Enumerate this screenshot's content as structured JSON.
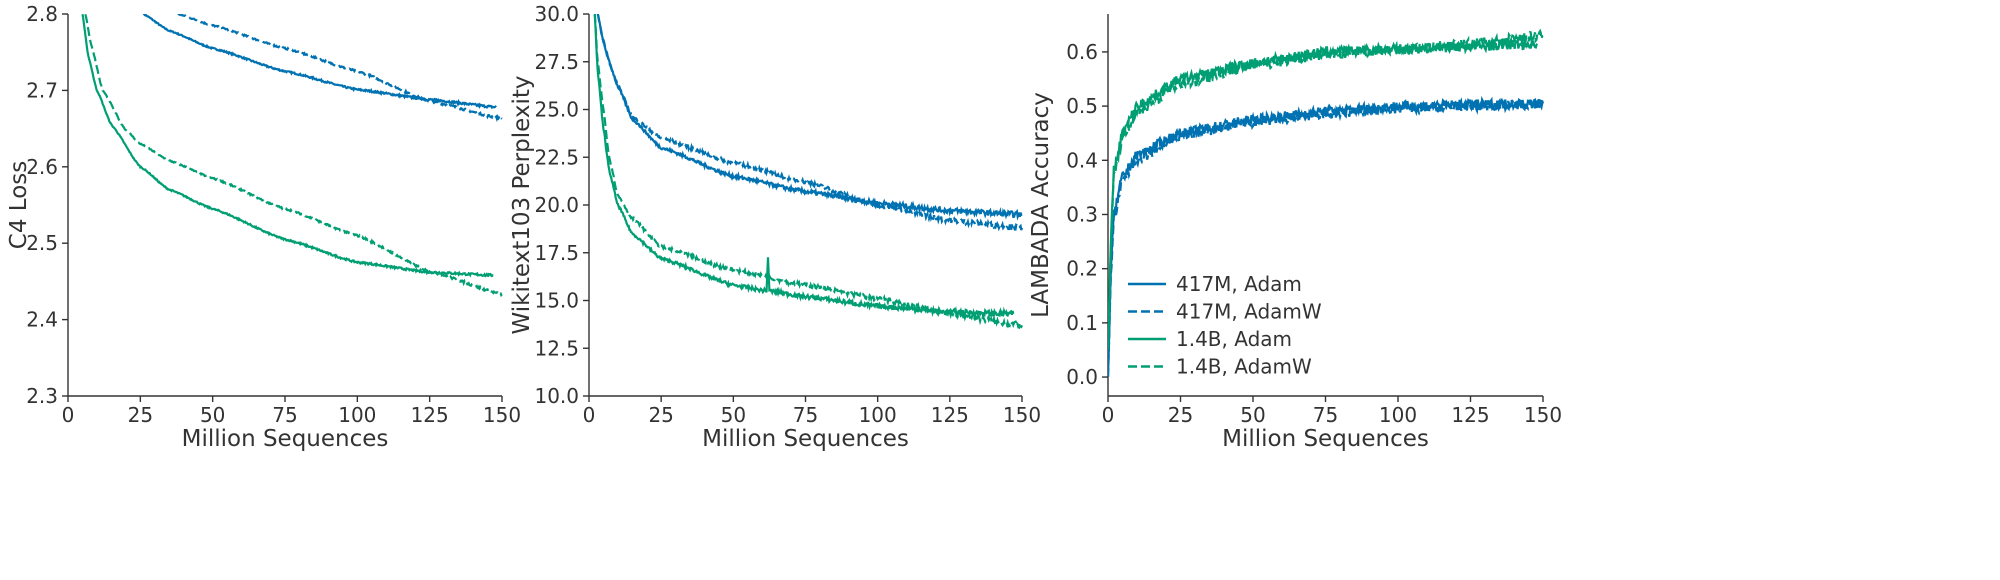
{
  "chart_data": [
    {
      "type": "line",
      "xlabel": "Million Sequences",
      "ylabel": "C4 Loss",
      "xlim": [
        0,
        150
      ],
      "ylim": [
        2.3,
        2.8
      ],
      "xticks": [
        "0",
        "25",
        "50",
        "75",
        "100",
        "125",
        "150"
      ],
      "yticks": [
        "2.3",
        "2.4",
        "2.5",
        "2.6",
        "2.7",
        "2.8"
      ],
      "grid": false,
      "series": [
        {
          "color": "#0072B2",
          "dash": false,
          "x": [
            26,
            35,
            50,
            75,
            100,
            125,
            148
          ],
          "y": [
            2.8,
            2.778,
            2.755,
            2.725,
            2.701,
            2.688,
            2.678
          ]
        },
        {
          "color": "#0072B2",
          "dash": true,
          "x": [
            38,
            50,
            75,
            100,
            125,
            150
          ],
          "y": [
            2.8,
            2.785,
            2.755,
            2.725,
            2.686,
            2.663
          ]
        },
        {
          "color": "#009E73",
          "dash": false,
          "x": [
            5,
            7,
            10,
            15,
            25,
            35,
            50,
            75,
            100,
            125,
            147
          ],
          "y": [
            2.8,
            2.745,
            2.7,
            2.655,
            2.6,
            2.57,
            2.545,
            2.505,
            2.475,
            2.462,
            2.458
          ]
        },
        {
          "color": "#009E73",
          "dash": true,
          "x": [
            6,
            8,
            12,
            20,
            25,
            35,
            50,
            75,
            100,
            125,
            150
          ],
          "y": [
            2.8,
            2.76,
            2.7,
            2.648,
            2.63,
            2.608,
            2.585,
            2.545,
            2.51,
            2.463,
            2.433
          ]
        }
      ]
    },
    {
      "type": "line",
      "xlabel": "Million Sequences",
      "ylabel": "Wikitext103 Perplexity",
      "xlim": [
        0,
        150
      ],
      "ylim": [
        10,
        30
      ],
      "xticks": [
        "0",
        "25",
        "50",
        "75",
        "100",
        "125",
        "150"
      ],
      "yticks": [
        "10.0",
        "12.5",
        "15.0",
        "17.5",
        "20.0",
        "22.5",
        "25.0",
        "27.5",
        "30.0"
      ],
      "grid": false,
      "series": [
        {
          "color": "#0072B2",
          "dash": false,
          "x": [
            3,
            5,
            7,
            10,
            15,
            25,
            50,
            75,
            100,
            125,
            150
          ],
          "y": [
            30,
            28.5,
            27.5,
            26.2,
            24.5,
            23,
            21.5,
            20.7,
            20.1,
            19.7,
            19.5
          ]
        },
        {
          "color": "#0072B2",
          "dash": true,
          "x": [
            3,
            5,
            8,
            10,
            15,
            25,
            50,
            75,
            100,
            125,
            150
          ],
          "y": [
            30,
            28.6,
            27,
            26.3,
            24.6,
            23.5,
            22.2,
            21.2,
            20.0,
            19.2,
            18.8
          ]
        },
        {
          "color": "#009E73",
          "dash": false,
          "x": [
            2,
            3,
            5,
            7,
            10,
            15,
            25,
            50,
            61.5,
            62,
            62.5,
            75,
            100,
            125,
            147
          ],
          "y": [
            30,
            27,
            24,
            21.8,
            20,
            18.5,
            17.2,
            15.8,
            15.5,
            17.3,
            15.5,
            15.2,
            14.7,
            14.4,
            14.3
          ]
        },
        {
          "color": "#009E73",
          "dash": true,
          "x": [
            2,
            3,
            5,
            7,
            10,
            15,
            25,
            50,
            75,
            100,
            125,
            150
          ],
          "y": [
            30,
            27.5,
            25,
            22.5,
            20.5,
            19.3,
            17.8,
            16.6,
            15.8,
            15.1,
            14.3,
            13.7
          ]
        }
      ]
    },
    {
      "type": "line",
      "xlabel": "Million Sequences",
      "ylabel": "LAMBADA Accuracy",
      "xlim": [
        0,
        150
      ],
      "ylim": [
        -0.035,
        0.67
      ],
      "xticks": [
        "0",
        "25",
        "50",
        "75",
        "100",
        "125",
        "150"
      ],
      "yticks": [
        "0.0",
        "0.1",
        "0.2",
        "0.3",
        "0.4",
        "0.5",
        "0.6"
      ],
      "grid": false,
      "legend": {
        "position": "lower-left"
      },
      "series": [
        {
          "name": "417M, Adam",
          "color": "#0072B2",
          "dash": false,
          "x": [
            0,
            1,
            2,
            5,
            10,
            25,
            50,
            75,
            100,
            125,
            150
          ],
          "y": [
            0.0,
            0.2,
            0.3,
            0.37,
            0.41,
            0.45,
            0.475,
            0.49,
            0.5,
            0.503,
            0.505
          ]
        },
        {
          "name": "417M, AdamW",
          "color": "#0072B2",
          "dash": true,
          "x": [
            0,
            1,
            2,
            5,
            10,
            25,
            50,
            75,
            100,
            125,
            150
          ],
          "y": [
            0.0,
            0.19,
            0.29,
            0.36,
            0.4,
            0.445,
            0.47,
            0.485,
            0.495,
            0.5,
            0.505
          ]
        },
        {
          "name": "1.4B, Adam",
          "color": "#009E73",
          "dash": false,
          "x": [
            0,
            1,
            2,
            5,
            10,
            25,
            50,
            75,
            100,
            125,
            148
          ],
          "y": [
            0.05,
            0.25,
            0.38,
            0.45,
            0.5,
            0.55,
            0.58,
            0.6,
            0.605,
            0.61,
            0.615
          ]
        },
        {
          "name": "1.4B, AdamW",
          "color": "#009E73",
          "dash": true,
          "x": [
            0,
            1,
            2,
            5,
            10,
            25,
            50,
            75,
            100,
            125,
            150
          ],
          "y": [
            0.05,
            0.24,
            0.37,
            0.44,
            0.49,
            0.54,
            0.575,
            0.595,
            0.605,
            0.615,
            0.63
          ]
        }
      ]
    }
  ]
}
